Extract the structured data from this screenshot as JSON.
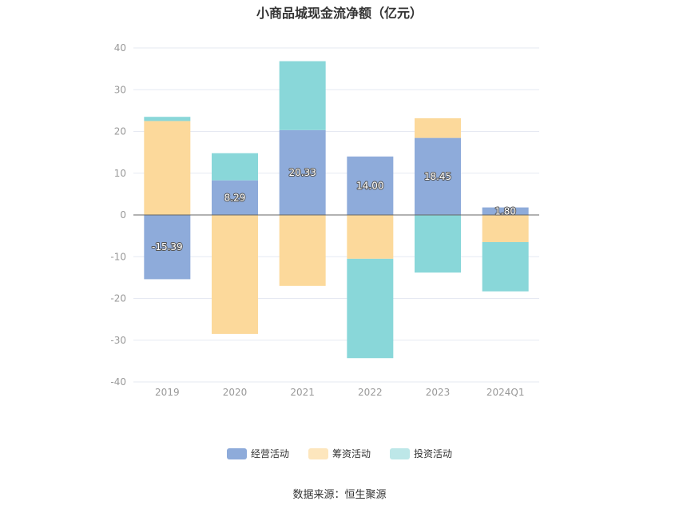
{
  "chart_data": {
    "type": "bar",
    "stacked": true,
    "title": "小商品城现金流净额（亿元）",
    "categories": [
      "2019",
      "2020",
      "2021",
      "2022",
      "2023",
      "2024Q1"
    ],
    "ylim": [
      -40,
      40
    ],
    "yticks": [
      40,
      30,
      20,
      10,
      0,
      -10,
      -20,
      -30,
      -40
    ],
    "grid": true,
    "legend_position": "bottom",
    "series": [
      {
        "name": "经营活动",
        "color": "#8eabda",
        "values": [
          -15.39,
          8.29,
          20.33,
          14.0,
          18.45,
          1.8
        ],
        "labels": [
          "-15.39",
          "8.29",
          "20.33",
          "14.00",
          "18.45",
          "1.80"
        ]
      },
      {
        "name": "筹资活动",
        "color": "#fcd99b",
        "values": [
          22.5,
          -28.5,
          -17.0,
          -10.5,
          4.7,
          -6.5
        ]
      },
      {
        "name": "投资活动",
        "color": "#89d7d9",
        "values": [
          1.0,
          6.5,
          16.5,
          -23.8,
          -13.8,
          -11.8
        ]
      }
    ]
  },
  "source": "数据来源：恒生聚源"
}
